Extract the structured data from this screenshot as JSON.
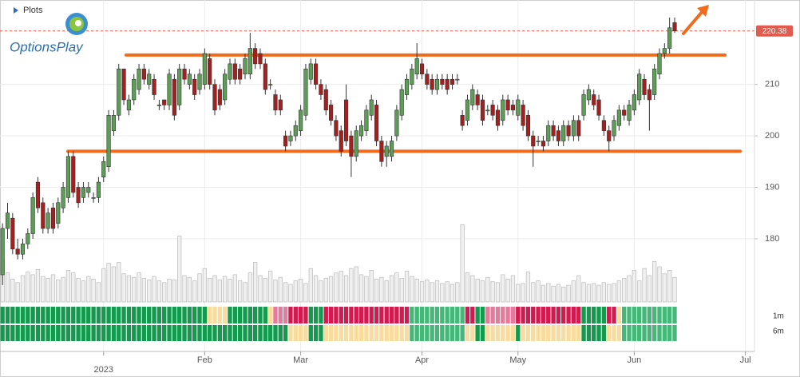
{
  "toolbar": {
    "plots": "Plots"
  },
  "logo": {
    "text": "OptionsPlay"
  },
  "chart_data": {
    "type": "candlestick",
    "ohlc": [
      [
        173,
        183,
        171,
        182
      ],
      [
        182,
        187,
        180,
        185
      ],
      [
        184,
        185,
        177,
        178
      ],
      [
        178,
        180,
        176,
        177
      ],
      [
        177,
        180,
        176,
        179
      ],
      [
        179,
        182,
        178,
        181
      ],
      [
        181,
        189,
        180,
        188
      ],
      [
        191,
        192,
        185,
        186
      ],
      [
        187,
        188,
        181,
        182
      ],
      [
        182,
        186,
        181,
        185
      ],
      [
        186,
        187,
        181,
        182
      ],
      [
        183,
        188,
        182,
        187
      ],
      [
        186,
        191,
        185,
        190
      ],
      [
        188,
        197,
        187,
        196
      ],
      [
        196,
        197,
        188,
        189
      ],
      [
        190,
        191,
        186,
        187
      ],
      [
        188,
        191,
        187,
        190
      ],
      [
        189,
        191,
        188,
        190
      ],
      [
        188,
        189,
        187,
        188
      ],
      [
        188,
        192,
        187,
        191
      ],
      [
        192,
        196,
        191,
        195
      ],
      [
        194,
        205,
        193,
        204
      ],
      [
        201,
        205,
        200,
        204
      ],
      [
        204,
        214,
        203,
        213
      ],
      [
        213,
        213,
        206,
        207
      ],
      [
        205,
        208,
        204,
        207
      ],
      [
        207,
        212,
        206,
        211
      ],
      [
        209,
        214,
        208,
        213
      ],
      [
        213,
        214,
        210,
        211
      ],
      [
        210,
        213,
        209,
        212
      ],
      [
        211,
        212,
        207,
        208
      ],
      [
        206,
        207,
        205,
        206
      ],
      [
        207,
        207,
        205,
        206
      ],
      [
        206,
        213,
        205,
        212
      ],
      [
        211,
        212,
        203,
        204
      ],
      [
        206,
        214,
        205,
        213
      ],
      [
        213,
        214,
        210,
        211
      ],
      [
        210,
        213,
        209,
        212
      ],
      [
        211,
        212,
        207,
        208
      ],
      [
        209,
        213,
        208,
        212
      ],
      [
        210,
        217,
        209,
        216
      ],
      [
        215,
        216,
        209,
        210
      ],
      [
        210,
        211,
        204,
        205
      ],
      [
        209,
        210,
        205,
        206
      ],
      [
        207,
        213,
        206,
        212
      ],
      [
        211,
        215,
        210,
        214
      ],
      [
        214,
        215,
        210,
        211
      ],
      [
        213,
        214,
        210,
        211
      ],
      [
        212,
        216,
        211,
        215
      ],
      [
        212,
        220,
        211,
        217
      ],
      [
        217,
        218,
        213,
        214
      ],
      [
        216,
        217,
        213,
        214
      ],
      [
        214,
        215,
        208,
        209
      ],
      [
        210,
        211,
        209,
        210
      ],
      [
        208,
        209,
        204,
        205
      ],
      [
        207,
        208,
        204,
        205
      ],
      [
        200,
        201,
        197,
        198
      ],
      [
        199,
        201,
        198,
        200
      ],
      [
        200,
        203,
        199,
        202
      ],
      [
        201,
        206,
        200,
        205
      ],
      [
        204,
        214,
        203,
        213
      ],
      [
        211,
        215,
        210,
        214
      ],
      [
        214,
        215,
        209,
        210
      ],
      [
        210,
        211,
        207,
        208
      ],
      [
        209,
        210,
        204,
        205
      ],
      [
        206,
        207,
        202,
        203
      ],
      [
        203,
        204,
        199,
        200
      ],
      [
        201,
        202,
        196,
        197
      ],
      [
        207,
        210,
        198,
        199
      ],
      [
        200,
        201,
        192,
        196
      ],
      [
        196,
        202,
        195,
        201
      ],
      [
        200,
        203,
        199,
        202
      ],
      [
        201,
        206,
        200,
        205
      ],
      [
        204,
        208,
        203,
        207
      ],
      [
        206,
        207,
        198,
        199
      ],
      [
        199,
        200,
        194,
        195
      ],
      [
        196,
        199,
        194,
        198
      ],
      [
        196,
        200,
        195,
        199
      ],
      [
        200,
        206,
        199,
        205
      ],
      [
        204,
        210,
        203,
        209
      ],
      [
        208,
        212,
        207,
        211
      ],
      [
        210,
        214,
        209,
        213
      ],
      [
        212,
        218,
        211,
        215
      ],
      [
        214,
        215,
        211,
        212
      ],
      [
        212,
        213,
        209,
        210
      ],
      [
        211,
        212,
        208,
        209
      ],
      [
        209,
        212,
        208,
        211
      ],
      [
        211,
        212,
        209,
        210
      ],
      [
        211,
        212,
        208,
        209
      ],
      [
        211,
        212,
        209,
        210
      ],
      [
        211,
        212,
        210,
        211
      ],
      [
        204,
        205,
        201,
        202
      ],
      [
        203,
        208,
        202,
        207
      ],
      [
        206,
        210,
        205,
        209
      ],
      [
        208,
        209,
        205,
        206
      ],
      [
        207,
        208,
        202,
        203
      ],
      [
        205,
        206,
        204,
        205
      ],
      [
        206,
        207,
        203,
        204
      ],
      [
        205,
        206,
        201,
        202
      ],
      [
        203,
        208,
        202,
        207
      ],
      [
        207,
        208,
        204,
        205
      ],
      [
        206,
        207,
        204,
        205
      ],
      [
        204,
        208,
        203,
        207
      ],
      [
        206,
        207,
        201,
        202
      ],
      [
        204,
        205,
        199,
        200
      ],
      [
        200,
        201,
        194,
        198
      ],
      [
        199,
        200,
        198,
        199
      ],
      [
        199,
        200,
        197,
        198
      ],
      [
        199,
        203,
        198,
        202
      ],
      [
        202,
        203,
        199,
        200
      ],
      [
        201,
        202,
        198,
        199
      ],
      [
        199,
        203,
        198,
        202
      ],
      [
        202,
        203,
        199,
        200
      ],
      [
        200,
        204,
        199,
        203
      ],
      [
        203,
        204,
        199,
        200
      ],
      [
        204,
        209,
        203,
        208
      ],
      [
        207,
        210,
        206,
        209
      ],
      [
        208,
        209,
        205,
        206
      ],
      [
        207,
        208,
        203,
        204
      ],
      [
        203,
        204,
        200,
        201
      ],
      [
        201,
        202,
        197,
        199
      ],
      [
        200,
        204,
        199,
        203
      ],
      [
        202,
        206,
        201,
        205
      ],
      [
        205,
        206,
        203,
        204
      ],
      [
        203,
        207,
        202,
        206
      ],
      [
        205,
        209,
        204,
        208
      ],
      [
        207,
        213,
        206,
        212
      ],
      [
        211,
        212,
        207,
        208
      ],
      [
        209,
        210,
        201,
        207
      ],
      [
        208,
        214,
        207,
        213
      ],
      [
        212,
        217,
        211,
        216
      ],
      [
        216,
        218,
        215,
        217
      ],
      [
        217,
        223,
        216,
        221
      ],
      [
        222,
        223,
        220,
        220.38
      ]
    ],
    "up_color": "#5c9e55",
    "down_color": "#a3201e",
    "volume": [
      48,
      33,
      26,
      22,
      30,
      34,
      31,
      37,
      29,
      27,
      31,
      25,
      28,
      36,
      33,
      27,
      24,
      29,
      26,
      22,
      38,
      44,
      40,
      45,
      32,
      30,
      28,
      33,
      27,
      25,
      29,
      24,
      22,
      26,
      25,
      75,
      30,
      28,
      24,
      32,
      38,
      27,
      30,
      25,
      29,
      26,
      31,
      24,
      22,
      33,
      45,
      30,
      27,
      35,
      25,
      28,
      22,
      20,
      24,
      26,
      21,
      38,
      30,
      24,
      27,
      29,
      33,
      35,
      30,
      38,
      40,
      31,
      29,
      36,
      26,
      28,
      24,
      30,
      33,
      27,
      35,
      29,
      26,
      23,
      25,
      22,
      24,
      21,
      23,
      20,
      22,
      88,
      33,
      30,
      26,
      24,
      28,
      23,
      22,
      31,
      26,
      30,
      20,
      21,
      34,
      22,
      24,
      19,
      21,
      18,
      20,
      17,
      19,
      24,
      30,
      22,
      20,
      21,
      19,
      22,
      20,
      21,
      24,
      27,
      30,
      36,
      24,
      38,
      30,
      46,
      40,
      32,
      36,
      28
    ],
    "volume_color": "#f0f0f0",
    "volume_lim": [
      0,
      100
    ],
    "xlim": [
      -0.5,
      148.8
    ],
    "xticks": [
      {
        "value": 20,
        "label": "2023"
      },
      {
        "value": 40,
        "label": "Feb"
      },
      {
        "value": 59,
        "label": "Mar"
      },
      {
        "value": 83,
        "label": "Apr"
      },
      {
        "value": 102,
        "label": "May"
      },
      {
        "value": 125,
        "label": "Jun"
      },
      {
        "value": 147,
        "label": "Jul"
      }
    ],
    "ylim": [
      158.1,
      226.4
    ],
    "yticks": [
      180,
      190,
      200,
      210
    ],
    "grid": true,
    "last_price": 220.38,
    "last_price_color": "#e25b4f",
    "levels": [
      {
        "value": 215.7,
        "color": "#f26b1d"
      },
      {
        "value": 197,
        "color": "#f26b1d"
      }
    ],
    "signals": [
      {
        "name": "1m",
        "states": "GGGGGGGGGGGGGGGGGGGGGGGGGGGGGGGGGGGGGGGGGYYYYGGGGGGGGYPPPRRRRGGGRRRRRRRRRRRRRRRRRMMMMMMMMMMMRRGGPPPPPPRRRRRRRRRRRRRGGGGGRRYMMMMMMMMMMM"
      },
      {
        "name": "6m",
        "states": "GGGGGGGGGGGGGGGGGGGGGGGGGGGGGGGGGGGGGGGGGGGGGGGGGGGGGGGGGYYYYGGGYYYYYYYYYYYYYYYYYMMMMMMMMMMMYYGGYYYYYYGYYYYYYYYYYYYGGGGGYYYMMMMMMMMMMM"
      }
    ],
    "signal_colors": {
      "G": "#139a4e",
      "M": "#45b879",
      "Y": "#f8dc9e",
      "P": "#e47b9c",
      "R": "#d01a50"
    }
  }
}
